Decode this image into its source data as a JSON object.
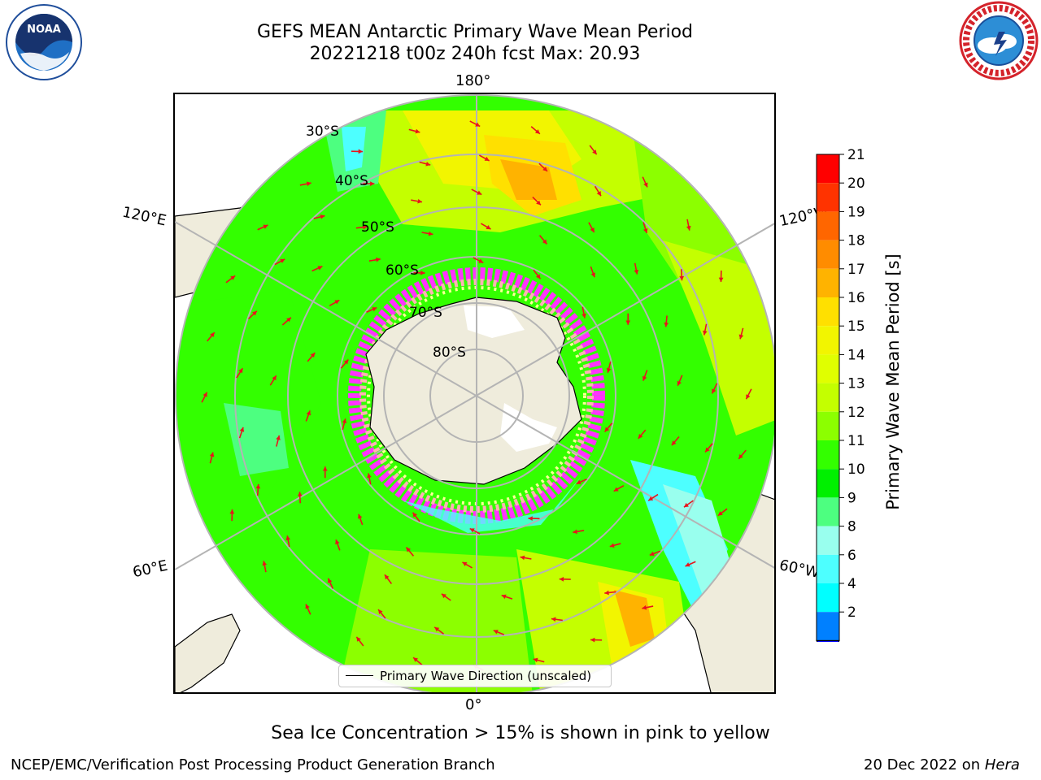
{
  "header": {
    "title_line1": "GEFS MEAN Antarctic Primary Wave Mean Period",
    "title_line2": "20221218 t00z 240h fcst   Max: 20.93"
  },
  "logos": {
    "left": {
      "name": "NOAA",
      "ring_text": "NATIONAL OCEANIC AND ATMOSPHERIC ADMINISTRATION · U.S. DEPARTMENT OF COMMERCE",
      "color": "#1f4e9b"
    },
    "right": {
      "name": "National Weather Service",
      "ring_text": "NATIONAL WEATHER SERVICE",
      "color": "#d4232b"
    }
  },
  "map": {
    "projection": "south-polar-stereographic",
    "longitude_labels": [
      "180°",
      "120°E",
      "120°W",
      "60°E",
      "60°W",
      "0°"
    ],
    "latitude_labels": [
      "30°S",
      "40°S",
      "50°S",
      "60°S",
      "70°S",
      "80°S"
    ],
    "legend_entry": "Primary Wave Direction (unscaled)",
    "arrow_color": "#e8141c",
    "land_color": "#efecdc",
    "ice_note_colors": [
      "#ff33ff",
      "#ffb3b3",
      "#ffff99"
    ]
  },
  "colorbar": {
    "label": "Primary Wave Mean Period [s]",
    "ticks": [
      "21",
      "20",
      "19",
      "18",
      "17",
      "16",
      "15",
      "14",
      "13",
      "12",
      "11",
      "10",
      "9",
      "8",
      "6",
      "4",
      "2"
    ],
    "colors": [
      "#ff0000",
      "#ff3300",
      "#ff6600",
      "#ff8c00",
      "#ffb300",
      "#ffe000",
      "#f2f500",
      "#e0ff00",
      "#c4ff00",
      "#8cff00",
      "#33ff00",
      "#00f000",
      "#4dff80",
      "#99ffee",
      "#4dffff",
      "#00ffff",
      "#0080ff"
    ],
    "extend_color": "#0000ff"
  },
  "caption": "Sea Ice Concentration > 15% is shown in pink to yellow",
  "footer": {
    "left": "NCEP/EMC/Verification Post Processing Product Generation Branch",
    "right_date": "20 Dec 2022 on ",
    "right_host": "Hera"
  }
}
